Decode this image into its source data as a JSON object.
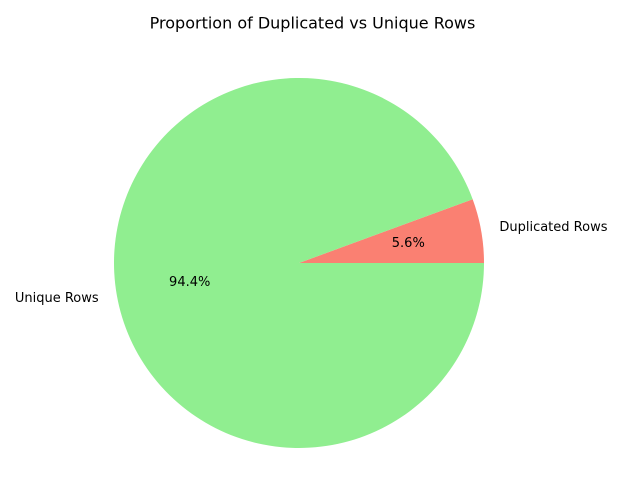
{
  "chart_data": {
    "type": "pie",
    "title": "Proportion of Duplicated vs Unique Rows",
    "labels": [
      "Duplicated Rows",
      "Unique Rows"
    ],
    "values": [
      5.6,
      94.4
    ],
    "percent_labels": [
      "5.6%",
      "94.4%"
    ],
    "colors": [
      "#fa8072",
      "#90ee90"
    ],
    "start_angle_deg": 0,
    "direction": "counterclockwise"
  }
}
